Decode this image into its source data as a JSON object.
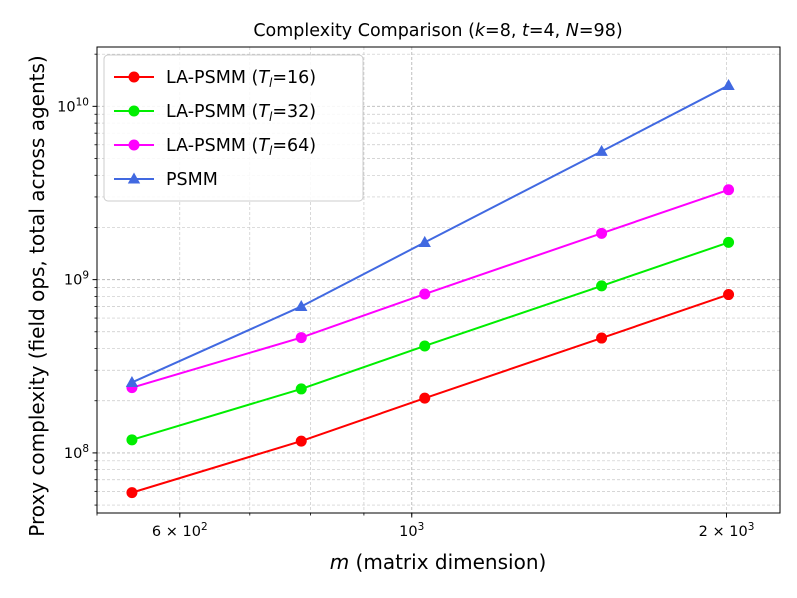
{
  "chart_data": {
    "type": "line",
    "title": "Complexity Comparison (k=8, t=4, N=98)",
    "title_parts": [
      {
        "text": "Complexity Comparison (",
        "italic": false
      },
      {
        "text": "k",
        "italic": true
      },
      {
        "text": "=8, ",
        "italic": false
      },
      {
        "text": "t",
        "italic": true
      },
      {
        "text": "=4, ",
        "italic": false
      },
      {
        "text": "N",
        "italic": true
      },
      {
        "text": "=98)",
        "italic": false
      }
    ],
    "xlabel": "m (matrix dimension)",
    "xlabel_parts": [
      {
        "text": "m",
        "italic": true
      },
      {
        "text": " (matrix dimension)",
        "italic": false
      }
    ],
    "ylabel": "Proxy complexity  (field ops, total across agents)",
    "xscale": "log",
    "yscale": "log",
    "xlim": [
      500,
      2250
    ],
    "ylim": [
      45000000,
      22000000000
    ],
    "grid": true,
    "legend_position": "top-left",
    "x": [
      540,
      784,
      1029,
      1519,
      2009
    ],
    "x_ticks": [
      {
        "value": 600,
        "label": "6 × 10^2",
        "base": "6 × 10",
        "exp": "2"
      },
      {
        "value": 1000,
        "label": "10^3",
        "base": "10",
        "exp": "3"
      },
      {
        "value": 2000,
        "label": "2 × 10^3",
        "base": "2 × 10",
        "exp": "3"
      }
    ],
    "y_ticks": [
      {
        "value": 100000000,
        "label": "10^8",
        "base": "10",
        "exp": "8"
      },
      {
        "value": 1000000000,
        "label": "10^9",
        "base": "10",
        "exp": "9"
      },
      {
        "value": 10000000000,
        "label": "10^10",
        "base": "10",
        "exp": "10"
      }
    ],
    "series": [
      {
        "name": "LA-PSMM (T_l=16)",
        "legend_main": "LA-PSMM (",
        "legend_sym": "T",
        "legend_sub": "l",
        "legend_tail": "=16)",
        "color": "#ff0000",
        "marker": "circle",
        "values": [
          59000000,
          117000000,
          207000000,
          460000000,
          820000000
        ]
      },
      {
        "name": "LA-PSMM (T_l=32)",
        "legend_main": "LA-PSMM (",
        "legend_sym": "T",
        "legend_sub": "l",
        "legend_tail": "=32)",
        "color": "#00ee00",
        "marker": "circle",
        "values": [
          119000000,
          234000000,
          414000000,
          920000000,
          1640000000
        ]
      },
      {
        "name": "LA-PSMM (T_l=64)",
        "legend_main": "LA-PSMM (",
        "legend_sym": "T",
        "legend_sub": "l",
        "legend_tail": "=64)",
        "color": "#ff00ff",
        "marker": "circle",
        "values": [
          238000000,
          463000000,
          826000000,
          1850000000,
          3300000000
        ]
      },
      {
        "name": "PSMM",
        "legend_main": "PSMM",
        "legend_sym": "",
        "legend_sub": "",
        "legend_tail": "",
        "color": "#4169e1",
        "marker": "triangle",
        "values": [
          255000000,
          700000000,
          1640000000,
          5500000000,
          13200000000
        ]
      }
    ]
  }
}
